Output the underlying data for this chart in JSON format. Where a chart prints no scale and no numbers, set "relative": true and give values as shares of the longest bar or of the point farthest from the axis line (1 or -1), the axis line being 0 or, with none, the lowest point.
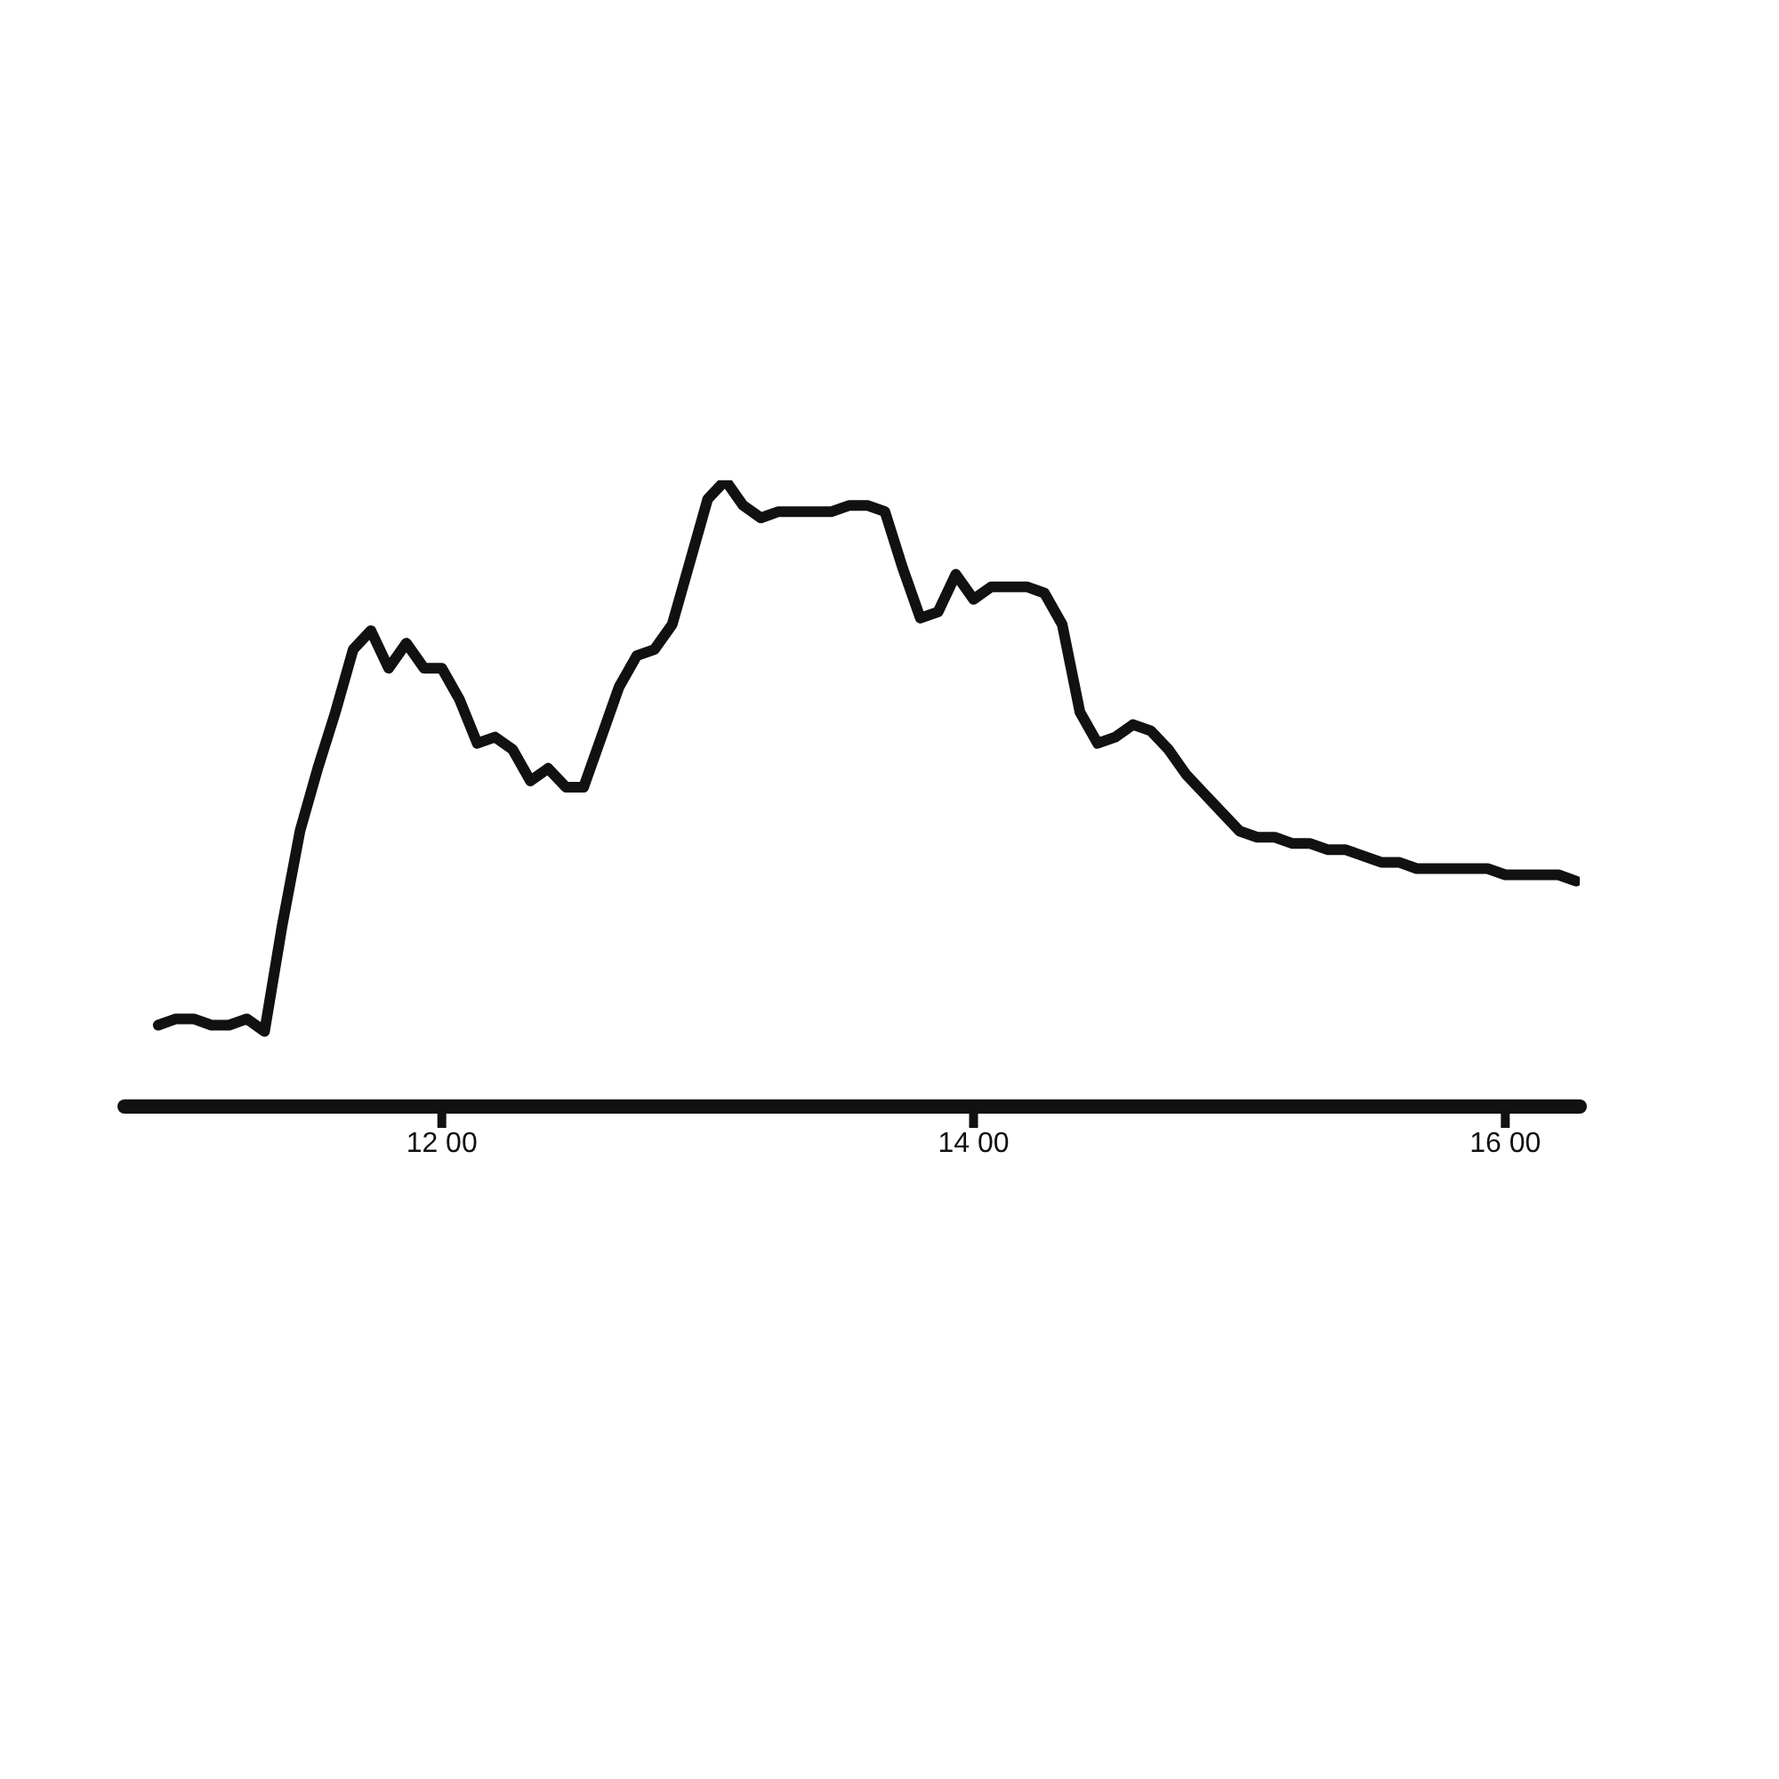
{
  "chart_data": {
    "type": "line",
    "relative": true,
    "color": "#111111",
    "tick_labels": "x",
    "categories": [
      null,
      null,
      null,
      null,
      null,
      null,
      null,
      null,
      null,
      null,
      null,
      null,
      null,
      null,
      null,
      null,
      "12 00",
      null,
      null,
      null,
      null,
      null,
      null,
      null,
      null,
      null,
      null,
      null,
      null,
      null,
      null,
      null,
      null,
      null,
      null,
      null,
      null,
      null,
      null,
      null,
      null,
      null,
      null,
      null,
      null,
      null,
      "14 00",
      null,
      null,
      null,
      null,
      null,
      null,
      null,
      null,
      null,
      null,
      null,
      null,
      null,
      null,
      null,
      null,
      null,
      null,
      null,
      null,
      null,
      null,
      null,
      null,
      null,
      null,
      null,
      null,
      null,
      "16 00",
      null,
      null,
      null,
      null
    ],
    "values": [
      0.13,
      0.14,
      0.14,
      0.13,
      0.13,
      0.14,
      0.12,
      0.29,
      0.44,
      0.54,
      0.63,
      0.73,
      0.76,
      0.7,
      0.74,
      0.7,
      0.7,
      0.65,
      0.58,
      0.59,
      0.57,
      0.52,
      0.54,
      0.51,
      0.51,
      0.59,
      0.67,
      0.72,
      0.73,
      0.77,
      0.87,
      0.97,
      1,
      0.96,
      0.94,
      0.95,
      0.95,
      0.95,
      0.95,
      0.96,
      0.96,
      0.95,
      0.86,
      0.78,
      0.79,
      0.85,
      0.81,
      0.83,
      0.83,
      0.83,
      0.82,
      0.77,
      0.63,
      0.58,
      0.59,
      0.61,
      0.6,
      0.57,
      0.53,
      0.5,
      0.47,
      0.44,
      0.43,
      0.43,
      0.42,
      0.42,
      0.41,
      0.41,
      0.4,
      0.39,
      0.39,
      0.38,
      0.38,
      0.38,
      0.38,
      0.38,
      0.37,
      0.37,
      0.37,
      0.37,
      0.36
    ]
  }
}
